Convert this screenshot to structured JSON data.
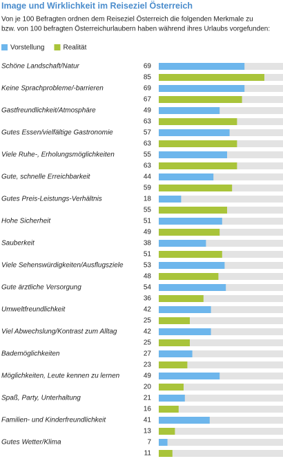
{
  "chart_data": {
    "type": "hbar",
    "title": "Image und Wirklichkeit im Reiseziel Österreich",
    "subtitle": [
      "Von je 100 Befragten ordnen dem Reiseziel Österreich die folgenden Merkmale zu",
      "bzw. von 100 befragten Österreichurlaubern haben während ihres Urlaubs vorgefunden:"
    ],
    "categories": [
      "Schöne Landschaft/Natur",
      "Keine Sprachprobleme/-barrieren",
      "Gastfreundlichkeit/Atmosphäre",
      "Gutes Essen/vielfältige Gastronomie",
      "Viele Ruhe-, Erholungsmöglichkeiten",
      "Gute, schnelle Erreichbarkeit",
      "Gutes Preis-Leistungs-Verhältnis",
      "Hohe Sicherheit",
      "Sauberkeit",
      "Viele Sehenswürdigkeiten/Ausflugsziele",
      "Gute ärztliche Versorgung",
      "Umweltfreundlichkeit",
      "Viel Abwechslung/Kontrast zum Alltag",
      "Bademöglichkeiten",
      "Möglichkeiten, Leute kennen zu lernen",
      "Spaß, Party, Unterhaltung",
      "Familien- und Kinderfreundlichkeit",
      "Gutes Wetter/Klima"
    ],
    "series": [
      {
        "name": "Vorstellung",
        "color": "#6db6ec",
        "values": [
          69,
          69,
          49,
          57,
          55,
          44,
          18,
          51,
          38,
          53,
          54,
          42,
          42,
          27,
          49,
          21,
          41,
          7
        ]
      },
      {
        "name": "Realität",
        "color": "#a9c43a",
        "values": [
          85,
          67,
          63,
          63,
          63,
          59,
          55,
          49,
          51,
          48,
          36,
          25,
          25,
          23,
          20,
          16,
          13,
          11
        ]
      }
    ],
    "xlim": [
      0,
      100
    ]
  }
}
